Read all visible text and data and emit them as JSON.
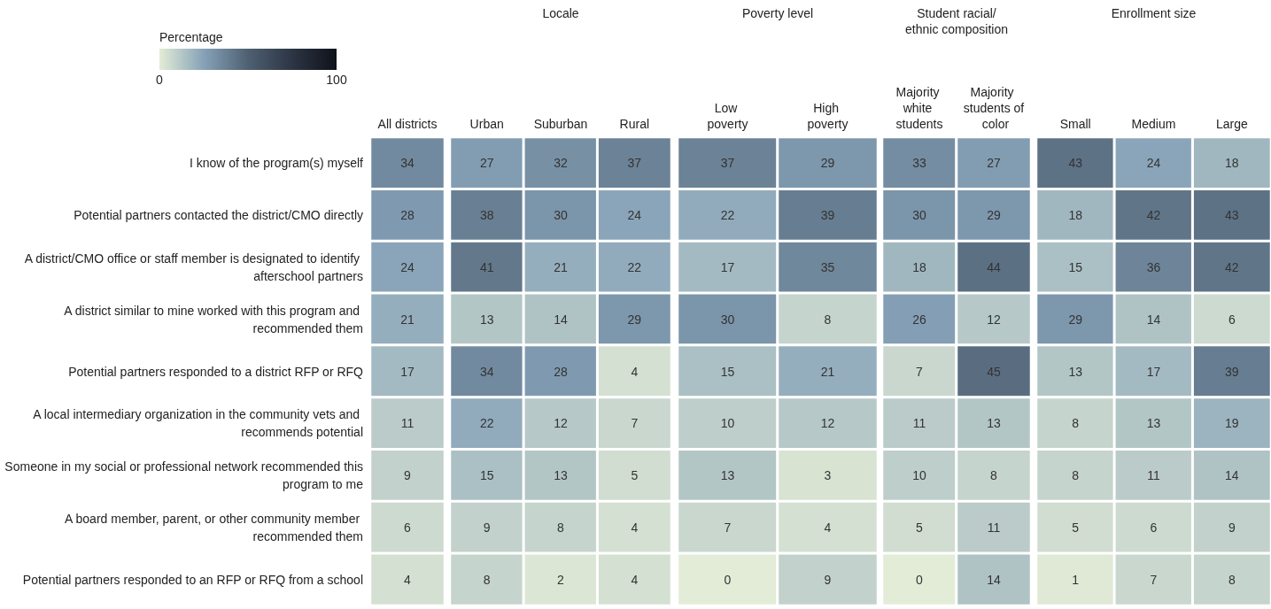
{
  "chart_data": {
    "type": "heatmap",
    "clabel": "Percentage",
    "clim": [
      0,
      100
    ],
    "cticks": [
      0,
      100
    ],
    "data_labels": true,
    "annotations": [
      "Locale",
      "Poverty level",
      "Student racial/ethnic composition",
      "Enrollment size"
    ],
    "categories": [
      "All districts",
      "Urban",
      "Suburban",
      "Rural",
      "Low poverty",
      "High poverty",
      "Majority white students",
      "Majority students of color",
      "Small",
      "Medium",
      "Large"
    ],
    "y_categories": [
      "I know of the program(s) myself",
      "Potential partners contacted the district/CMO directly",
      "A district/CMO office or staff member is designated to identify afterschool partners",
      "A district similar to mine worked with this program and recommended them",
      "Potential partners responded to a district RFP or RFQ",
      "A local intermediary organization in the community vets and recommends potential",
      "Someone in my social or professional network recommended this program to me",
      "A board member, parent, or other community member recommended them",
      "Potential partners responded to an RFP or RFQ from a school"
    ],
    "cells": [
      [
        34,
        27,
        32,
        37,
        37,
        29,
        33,
        27,
        43,
        24,
        18
      ],
      [
        28,
        38,
        30,
        24,
        22,
        39,
        30,
        29,
        18,
        42,
        43
      ],
      [
        24,
        41,
        21,
        22,
        17,
        35,
        18,
        44,
        15,
        36,
        42
      ],
      [
        21,
        13,
        14,
        29,
        30,
        8,
        26,
        12,
        29,
        14,
        6
      ],
      [
        17,
        34,
        28,
        4,
        15,
        21,
        7,
        45,
        13,
        17,
        39
      ],
      [
        11,
        22,
        12,
        7,
        10,
        12,
        11,
        13,
        8,
        13,
        19
      ],
      [
        9,
        15,
        13,
        5,
        13,
        3,
        10,
        8,
        8,
        11,
        14
      ],
      [
        6,
        9,
        8,
        4,
        7,
        4,
        5,
        11,
        5,
        6,
        9
      ],
      [
        4,
        8,
        2,
        4,
        0,
        9,
        0,
        14,
        1,
        7,
        8
      ]
    ]
  }
}
